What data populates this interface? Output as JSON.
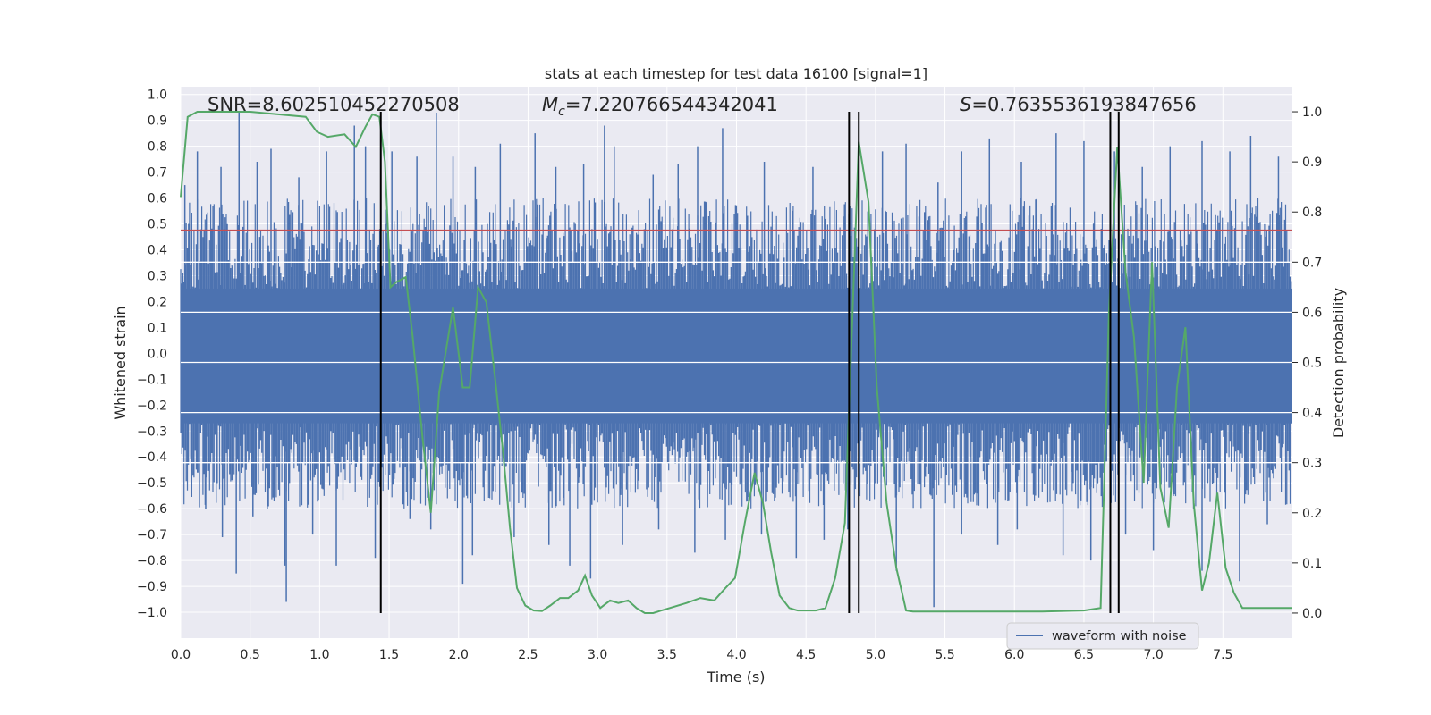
{
  "chart_data": {
    "type": "line",
    "title": "stats at each timestep for test data 16100 [signal=1]",
    "xlabel": "Time (s)",
    "ylabel": "Whitened strain",
    "y2label": "Detection probability",
    "xlim": [
      0.0,
      8.0
    ],
    "ylim": [
      -1.1,
      1.03
    ],
    "y2lim": [
      -0.05,
      1.05
    ],
    "xticks": [
      "0.0",
      "0.5",
      "1.0",
      "1.5",
      "2.0",
      "2.5",
      "3.0",
      "3.5",
      "4.0",
      "4.5",
      "5.0",
      "5.5",
      "6.0",
      "6.5",
      "7.0",
      "7.5"
    ],
    "yticks": [
      "1.0",
      "0.9",
      "0.8",
      "0.7",
      "0.6",
      "0.5",
      "0.4",
      "0.3",
      "0.2",
      "0.1",
      "0.0",
      "−0.1",
      "−0.2",
      "−0.3",
      "−0.4",
      "−0.5",
      "−0.6",
      "−0.7",
      "−0.8",
      "−0.9",
      "−1.0"
    ],
    "y2ticks": [
      "1.0",
      "0.9",
      "0.8",
      "0.7",
      "0.6",
      "0.5",
      "0.4",
      "0.3",
      "0.2",
      "0.1",
      "0.0"
    ],
    "annotations": {
      "snr": "SNR=8.602510452270508",
      "mc_symbol": "M",
      "mc_sub": "c",
      "mc_value": "=7.220766544342041",
      "s_symbol": "S",
      "s_value": "=0.7635536193847656"
    },
    "threshold": 0.7635536193847656,
    "vertical_lines": [
      1.44,
      4.81,
      4.88,
      6.69,
      6.75
    ],
    "waveform": {
      "name": "waveform with noise",
      "color": "#4c72b0",
      "envelope_pos": 0.25,
      "envelope_neg": -0.27,
      "spikes": [
        [
          0.03,
          0.65
        ],
        [
          0.12,
          0.78
        ],
        [
          0.29,
          0.72
        ],
        [
          0.42,
          0.93
        ],
        [
          0.55,
          0.74
        ],
        [
          0.65,
          0.79
        ],
        [
          0.85,
          0.68
        ],
        [
          1.05,
          0.78
        ],
        [
          1.25,
          0.88
        ],
        [
          1.33,
          0.8
        ],
        [
          1.52,
          0.78
        ],
        [
          1.7,
          0.76
        ],
        [
          1.84,
          0.93
        ],
        [
          1.96,
          0.76
        ],
        [
          2.12,
          0.72
        ],
        [
          2.3,
          0.81
        ],
        [
          2.55,
          0.85
        ],
        [
          2.7,
          0.72
        ],
        [
          2.9,
          0.73
        ],
        [
          3.05,
          0.88
        ],
        [
          3.12,
          0.8
        ],
        [
          3.4,
          0.69
        ],
        [
          3.58,
          0.73
        ],
        [
          3.72,
          0.8
        ],
        [
          3.9,
          0.87
        ],
        [
          4.2,
          0.74
        ],
        [
          4.55,
          0.72
        ],
        [
          4.88,
          0.72
        ],
        [
          5.05,
          0.78
        ],
        [
          5.22,
          0.81
        ],
        [
          5.45,
          0.66
        ],
        [
          5.62,
          0.78
        ],
        [
          5.82,
          0.83
        ],
        [
          6.05,
          0.74
        ],
        [
          6.3,
          0.85
        ],
        [
          6.5,
          0.82
        ],
        [
          6.72,
          0.78
        ],
        [
          6.92,
          0.72
        ],
        [
          7.12,
          0.8
        ],
        [
          7.35,
          0.82
        ],
        [
          7.55,
          0.78
        ],
        [
          7.7,
          0.84
        ],
        [
          7.9,
          0.76
        ],
        [
          0.18,
          -0.6
        ],
        [
          0.3,
          -0.71
        ],
        [
          0.4,
          -0.85
        ],
        [
          0.52,
          -0.63
        ],
        [
          0.75,
          -0.82
        ],
        [
          0.76,
          -0.96
        ],
        [
          0.95,
          -0.7
        ],
        [
          1.12,
          -0.82
        ],
        [
          1.4,
          -0.79
        ],
        [
          1.65,
          -0.64
        ],
        [
          1.8,
          -0.68
        ],
        [
          2.03,
          -0.89
        ],
        [
          2.1,
          -0.78
        ],
        [
          2.4,
          -0.71
        ],
        [
          2.65,
          -0.74
        ],
        [
          2.8,
          -0.82
        ],
        [
          2.95,
          -0.87
        ],
        [
          3.18,
          -0.74
        ],
        [
          3.44,
          -0.68
        ],
        [
          3.7,
          -0.77
        ],
        [
          3.92,
          -0.72
        ],
        [
          4.18,
          -0.7
        ],
        [
          4.43,
          -0.79
        ],
        [
          4.63,
          -0.72
        ],
        [
          4.8,
          -0.68
        ],
        [
          5.15,
          -0.84
        ],
        [
          5.42,
          -0.98
        ],
        [
          5.62,
          -0.7
        ],
        [
          5.88,
          -0.74
        ],
        [
          6.02,
          -0.68
        ],
        [
          6.35,
          -0.78
        ],
        [
          6.55,
          -0.8
        ],
        [
          6.8,
          -0.7
        ],
        [
          7.0,
          -0.76
        ],
        [
          7.35,
          -0.84
        ],
        [
          7.62,
          -0.88
        ],
        [
          7.82,
          -0.66
        ]
      ]
    },
    "probability": {
      "color": "#55a868",
      "x": [
        0.0,
        0.05,
        0.12,
        0.5,
        0.9,
        0.98,
        1.06,
        1.18,
        1.26,
        1.33,
        1.38,
        1.43,
        1.47,
        1.51,
        1.55,
        1.62,
        1.67,
        1.74,
        1.8,
        1.86,
        1.96,
        2.03,
        2.08,
        2.14,
        2.2,
        2.27,
        2.32,
        2.37,
        2.42,
        2.48,
        2.54,
        2.6,
        2.66,
        2.73,
        2.79,
        2.86,
        2.91,
        2.96,
        3.02,
        3.09,
        3.15,
        3.22,
        3.28,
        3.34,
        3.4,
        3.46,
        3.52,
        3.64,
        3.74,
        3.84,
        3.92,
        3.99,
        4.06,
        4.13,
        4.19,
        4.25,
        4.31,
        4.38,
        4.44,
        4.5,
        4.57,
        4.64,
        4.71,
        4.78,
        4.88,
        4.95,
        5.01,
        5.08,
        5.15,
        5.22,
        5.27,
        5.4,
        5.6,
        5.9,
        6.2,
        6.5,
        6.62,
        6.68,
        6.74,
        6.8,
        6.86,
        6.93,
        6.99,
        7.05,
        7.11,
        7.17,
        7.23,
        7.29,
        7.35,
        7.4,
        7.46,
        7.52,
        7.58,
        7.64,
        7.7,
        7.76,
        8.0
      ],
      "y": [
        0.83,
        0.99,
        1.0,
        1.0,
        0.99,
        0.96,
        0.95,
        0.955,
        0.93,
        0.97,
        0.995,
        0.99,
        0.9,
        0.65,
        0.66,
        0.67,
        0.55,
        0.35,
        0.2,
        0.44,
        0.61,
        0.45,
        0.45,
        0.65,
        0.62,
        0.45,
        0.32,
        0.17,
        0.05,
        0.015,
        0.005,
        0.004,
        0.015,
        0.03,
        0.03,
        0.045,
        0.075,
        0.035,
        0.01,
        0.025,
        0.02,
        0.025,
        0.01,
        0.0,
        0.0,
        0.005,
        0.01,
        0.02,
        0.03,
        0.025,
        0.05,
        0.07,
        0.18,
        0.28,
        0.22,
        0.12,
        0.035,
        0.01,
        0.005,
        0.005,
        0.005,
        0.01,
        0.07,
        0.18,
        0.94,
        0.82,
        0.45,
        0.22,
        0.09,
        0.005,
        0.003,
        0.003,
        0.003,
        0.003,
        0.003,
        0.005,
        0.01,
        0.6,
        0.93,
        0.68,
        0.55,
        0.26,
        0.7,
        0.25,
        0.17,
        0.45,
        0.57,
        0.22,
        0.045,
        0.1,
        0.24,
        0.09,
        0.04,
        0.01,
        0.01,
        0.01,
        0.01
      ]
    },
    "legend": {
      "label": "waveform with noise",
      "placement": "bottom-right"
    },
    "grid": true,
    "colors": {
      "background": "#eaeaf2",
      "grid": "#ffffff",
      "threshold": "#c44e52",
      "vline": "#000000"
    }
  }
}
